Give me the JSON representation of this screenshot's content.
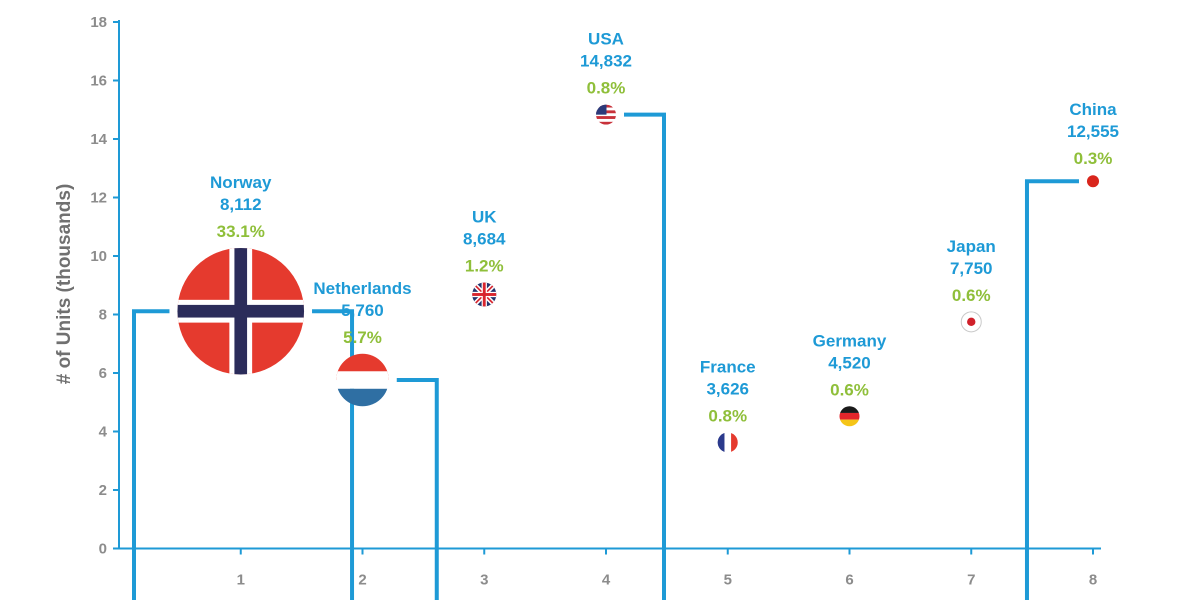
{
  "chart_data": {
    "type": "scatter",
    "title": "",
    "xlabel": "",
    "ylabel": "# of Units (thousands)",
    "xlim": [
      0,
      8
    ],
    "ylim": [
      0,
      18
    ],
    "x_ticks": [
      "1",
      "2",
      "3",
      "4",
      "5",
      "6",
      "7",
      "8"
    ],
    "y_ticks": [
      "0",
      "2",
      "4",
      "6",
      "8",
      "10",
      "12",
      "14",
      "16",
      "18"
    ],
    "grid": false,
    "points": [
      {
        "name": "Norway",
        "value_label": "8,112",
        "share_label": "33.1%",
        "x": 1,
        "y": 8.112,
        "share": 33.1,
        "flag": "norway-flag"
      },
      {
        "name": "Netherlands",
        "value_label": "5,760",
        "share_label": "5.7%",
        "x": 2,
        "y": 5.76,
        "share": 5.7,
        "flag": "netherlands-flag"
      },
      {
        "name": "UK",
        "value_label": "8,684",
        "share_label": "1.2%",
        "x": 3,
        "y": 8.684,
        "share": 1.2,
        "flag": "uk-flag"
      },
      {
        "name": "USA",
        "value_label": "14,832",
        "share_label": "0.8%",
        "x": 4,
        "y": 14.832,
        "share": 0.8,
        "flag": "usa-flag"
      },
      {
        "name": "France",
        "value_label": "3,626",
        "share_label": "0.8%",
        "x": 5,
        "y": 3.626,
        "share": 0.8,
        "flag": "france-flag"
      },
      {
        "name": "Germany",
        "value_label": "4,520",
        "share_label": "0.6%",
        "x": 6,
        "y": 4.52,
        "share": 0.6,
        "flag": "germany-flag"
      },
      {
        "name": "Japan",
        "value_label": "7,750",
        "share_label": "0.6%",
        "x": 7,
        "y": 7.75,
        "share": 0.6,
        "flag": "japan-flag"
      },
      {
        "name": "China",
        "value_label": "12,555",
        "share_label": "0.3%",
        "x": 8,
        "y": 12.555,
        "share": 0.3,
        "flag": "china-flag"
      }
    ],
    "colors": {
      "axis": "#1e9ad6",
      "country_text": "#1e9ad6",
      "share_text": "#8fbf3a",
      "tick_text": "#8c8c8c",
      "axis_title": "#707070"
    }
  }
}
